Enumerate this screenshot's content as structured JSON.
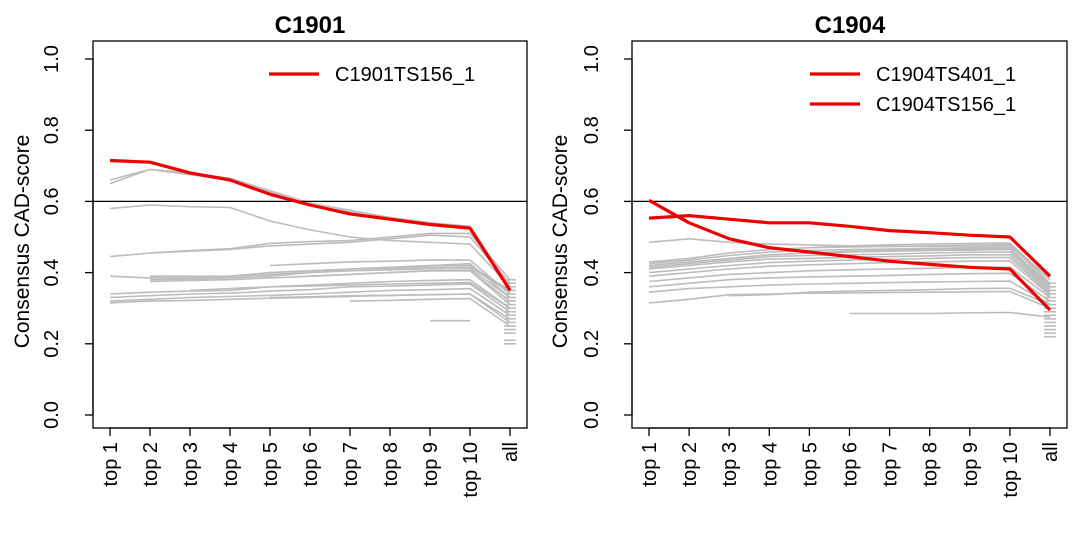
{
  "chart_data": [
    {
      "type": "line",
      "title": "C1901",
      "ylabel": "Consensus CAD-score",
      "xlabel": "",
      "ylim": [
        0,
        1
      ],
      "yticks": [
        "0.0",
        "0.2",
        "0.4",
        "0.6",
        "0.8",
        "1.0"
      ],
      "categories": [
        "top 1",
        "top 2",
        "top 3",
        "top 4",
        "top 5",
        "top 6",
        "top 7",
        "top 8",
        "top 9",
        "top 10",
        "all"
      ],
      "reference_line": 0.6,
      "legend_position": "top-right",
      "highlight_color": "#ee0000",
      "background_color": "#bdbdbd",
      "highlight_series": [
        {
          "name": "C1901TS156_1",
          "values": [
            0.715,
            0.71,
            0.68,
            0.66,
            0.62,
            0.59,
            0.565,
            0.55,
            0.535,
            0.525,
            0.35
          ]
        }
      ],
      "background_series": [
        {
          "values": [
            0.66,
            0.69,
            0.68,
            0.665,
            0.63,
            0.595,
            0.575,
            0.555,
            0.54,
            0.53,
            0.36
          ]
        },
        {
          "values": [
            0.65,
            0.69,
            0.675,
            0.66,
            0.625,
            0.59,
            0.57,
            0.55,
            0.535,
            0.528,
            0.355
          ]
        },
        {
          "values": [
            0.58,
            0.59,
            0.585,
            0.583,
            0.545,
            0.52,
            0.5,
            0.49,
            0.485,
            0.48,
            0.36
          ]
        },
        {
          "values": [
            0.445,
            0.455,
            0.46,
            0.465,
            0.475,
            0.48,
            0.485,
            0.495,
            0.505,
            0.5,
            0.37
          ]
        },
        {
          "values": [
            null,
            0.455,
            0.462,
            0.467,
            0.482,
            0.487,
            0.49,
            0.5,
            0.51,
            0.51,
            0.38
          ]
        },
        {
          "values": [
            0.39,
            0.385,
            0.385,
            0.39,
            0.395,
            0.4,
            0.41,
            0.415,
            0.42,
            0.42,
            0.35
          ]
        },
        {
          "values": [
            null,
            0.39,
            0.39,
            0.39,
            0.4,
            0.405,
            0.41,
            0.412,
            0.415,
            0.415,
            0.345
          ]
        },
        {
          "values": [
            null,
            0.38,
            0.382,
            0.385,
            0.39,
            0.4,
            0.405,
            0.408,
            0.41,
            0.41,
            0.33
          ]
        },
        {
          "values": [
            null,
            0.375,
            0.378,
            0.38,
            0.385,
            0.39,
            0.395,
            0.4,
            0.405,
            0.405,
            0.32
          ]
        },
        {
          "values": [
            null,
            null,
            null,
            null,
            0.42,
            0.425,
            0.43,
            0.432,
            0.435,
            0.435,
            0.34
          ]
        },
        {
          "values": [
            null,
            null,
            null,
            null,
            0.4,
            0.405,
            0.41,
            0.415,
            0.42,
            0.425,
            0.33
          ]
        },
        {
          "values": [
            null,
            null,
            null,
            null,
            null,
            0.39,
            0.395,
            0.4,
            0.405,
            0.405,
            0.31
          ]
        },
        {
          "values": [
            0.34,
            0.345,
            0.348,
            0.35,
            0.36,
            0.365,
            0.37,
            0.375,
            0.378,
            0.38,
            0.3
          ]
        },
        {
          "values": [
            0.33,
            0.335,
            0.34,
            0.342,
            0.348,
            0.352,
            0.36,
            0.362,
            0.365,
            0.368,
            0.29
          ]
        },
        {
          "values": [
            0.32,
            0.325,
            0.33,
            0.333,
            0.336,
            0.34,
            0.345,
            0.35,
            0.352,
            0.355,
            0.28
          ]
        },
        {
          "values": [
            0.315,
            0.32,
            0.322,
            0.325,
            0.328,
            0.33,
            0.333,
            0.336,
            0.338,
            0.34,
            0.27
          ]
        },
        {
          "values": [
            null,
            null,
            0.35,
            0.355,
            0.36,
            0.362,
            0.365,
            0.368,
            0.37,
            0.372,
            0.3
          ]
        },
        {
          "values": [
            null,
            null,
            null,
            null,
            0.33,
            0.332,
            0.335,
            0.336,
            0.338,
            0.34,
            0.26
          ]
        },
        {
          "values": [
            null,
            null,
            null,
            null,
            null,
            null,
            0.32,
            0.322,
            0.325,
            0.327,
            0.25
          ]
        },
        {
          "values": [
            null,
            null,
            null,
            null,
            null,
            null,
            null,
            null,
            0.265,
            0.265,
            null
          ]
        }
      ],
      "all_markers": [
        0.38,
        0.37,
        0.36,
        0.35,
        0.34,
        0.33,
        0.32,
        0.31,
        0.3,
        0.29,
        0.28,
        0.27,
        0.26,
        0.25,
        0.24,
        0.23,
        0.21,
        0.2
      ]
    },
    {
      "type": "line",
      "title": "C1904",
      "ylabel": "Consensus CAD-score",
      "xlabel": "",
      "ylim": [
        0,
        1
      ],
      "yticks": [
        "0.0",
        "0.2",
        "0.4",
        "0.6",
        "0.8",
        "1.0"
      ],
      "categories": [
        "top 1",
        "top 2",
        "top 3",
        "top 4",
        "top 5",
        "top 6",
        "top 7",
        "top 8",
        "top 9",
        "top 10",
        "all"
      ],
      "reference_line": 0.6,
      "legend_position": "top-right",
      "highlight_color": "#ee0000",
      "background_color": "#bdbdbd",
      "highlight_series": [
        {
          "name": "C1904TS401_1",
          "values": [
            0.553,
            0.56,
            0.55,
            0.54,
            0.54,
            0.53,
            0.518,
            0.512,
            0.505,
            0.5,
            0.39
          ]
        },
        {
          "name": "C1904TS156_1",
          "values": [
            0.603,
            0.54,
            0.495,
            0.47,
            0.458,
            0.445,
            0.432,
            0.423,
            0.415,
            0.41,
            0.295
          ]
        }
      ],
      "background_series": [
        {
          "values": [
            0.485,
            0.495,
            0.485,
            0.48,
            0.478,
            0.475,
            0.474,
            0.474,
            0.475,
            0.475,
            0.38
          ]
        },
        {
          "values": [
            0.43,
            0.44,
            0.455,
            0.465,
            0.47,
            0.472,
            0.473,
            0.475,
            0.477,
            0.478,
            0.37
          ]
        },
        {
          "values": [
            0.425,
            0.435,
            0.448,
            0.458,
            0.462,
            0.465,
            0.466,
            0.468,
            0.47,
            0.47,
            0.36
          ]
        },
        {
          "values": [
            0.42,
            0.43,
            0.44,
            0.45,
            0.455,
            0.458,
            0.46,
            0.462,
            0.463,
            0.465,
            0.355
          ]
        },
        {
          "values": [
            0.415,
            0.425,
            0.435,
            0.445,
            0.448,
            0.45,
            0.452,
            0.455,
            0.457,
            0.458,
            0.35
          ]
        },
        {
          "values": [
            0.41,
            0.42,
            0.43,
            0.438,
            0.44,
            0.443,
            0.445,
            0.447,
            0.45,
            0.45,
            0.345
          ]
        },
        {
          "values": [
            0.4,
            0.41,
            0.42,
            0.428,
            0.432,
            0.435,
            0.437,
            0.44,
            0.442,
            0.442,
            0.34
          ]
        },
        {
          "values": [
            0.39,
            0.4,
            0.41,
            0.418,
            0.422,
            0.425,
            0.428,
            0.43,
            0.432,
            0.433,
            0.335
          ]
        },
        {
          "values": [
            0.375,
            0.385,
            0.395,
            0.4,
            0.405,
            0.408,
            0.41,
            0.412,
            0.415,
            0.415,
            0.33
          ]
        },
        {
          "values": [
            0.36,
            0.37,
            0.38,
            0.385,
            0.388,
            0.39,
            0.392,
            0.395,
            0.397,
            0.398,
            0.32
          ]
        },
        {
          "values": [
            0.345,
            0.355,
            0.36,
            0.365,
            0.368,
            0.37,
            0.372,
            0.374,
            0.375,
            0.376,
            0.31
          ]
        },
        {
          "values": [
            0.315,
            0.325,
            0.338,
            0.34,
            0.342,
            0.343,
            0.344,
            0.345,
            0.346,
            0.347,
            0.3
          ]
        },
        {
          "values": [
            null,
            null,
            0.335,
            0.338,
            0.345,
            0.348,
            0.35,
            0.352,
            0.355,
            0.356,
            0.31
          ]
        },
        {
          "values": [
            null,
            null,
            null,
            null,
            0.47,
            0.475,
            0.478,
            0.48,
            0.482,
            0.483,
            0.38
          ]
        },
        {
          "values": [
            null,
            null,
            null,
            null,
            0.455,
            0.46,
            0.462,
            0.465,
            0.467,
            0.468,
            0.365
          ]
        },
        {
          "values": [
            null,
            null,
            null,
            null,
            null,
            0.285,
            0.285,
            0.285,
            0.287,
            0.288,
            0.275
          ]
        }
      ],
      "all_markers": [
        0.37,
        0.36,
        0.35,
        0.34,
        0.33,
        0.32,
        0.31,
        0.3,
        0.29,
        0.28,
        0.27,
        0.26,
        0.25,
        0.24,
        0.23,
        0.22
      ]
    }
  ]
}
